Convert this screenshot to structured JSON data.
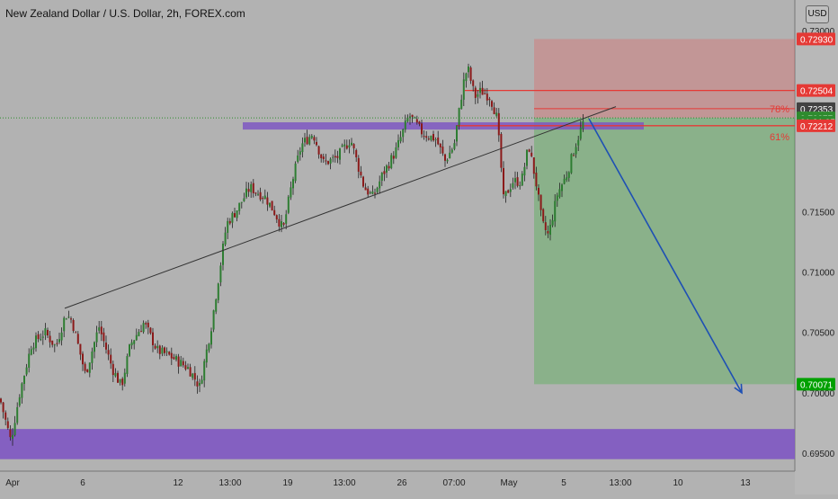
{
  "header": {
    "title": "New Zealand Dollar / U.S. Dollar, 2h, FOREX.com",
    "currency_button": "USD"
  },
  "colors": {
    "background": "#b2b2b2",
    "bull": "#2e7d32",
    "bear": "#8b1a1a",
    "zone": "#7e57c2",
    "stop": "#e53935",
    "target": "#00b000",
    "arrow": "#1e50b4",
    "trendline": "#333333"
  },
  "chart_data": {
    "type": "candlestick",
    "title": "New Zealand Dollar / U.S. Dollar, 2h, FOREX.com",
    "symbol": "NZD/USD",
    "interval": "2h",
    "x_tick_labels": [
      "Apr",
      "6",
      "12",
      "13:00",
      "19",
      "13:00",
      "26",
      "07:00",
      "May",
      "5",
      "13:00",
      "10",
      "13"
    ],
    "y_tick_labels": [
      "0.73000",
      "0.71500",
      "0.71000",
      "0.70500",
      "0.70000",
      "0.69500"
    ],
    "ylim": [
      0.6895,
      0.7305
    ],
    "price_path": [
      [
        0,
        0.6995
      ],
      [
        12,
        0.696
      ],
      [
        22,
        0.7
      ],
      [
        35,
        0.704
      ],
      [
        50,
        0.705
      ],
      [
        62,
        0.7038
      ],
      [
        73,
        0.7065
      ],
      [
        80,
        0.706
      ],
      [
        95,
        0.7015
      ],
      [
        110,
        0.7055
      ],
      [
        125,
        0.702
      ],
      [
        135,
        0.7005
      ],
      [
        145,
        0.704
      ],
      [
        160,
        0.7058
      ],
      [
        175,
        0.7035
      ],
      [
        190,
        0.703
      ],
      [
        210,
        0.702
      ],
      [
        222,
        0.7005
      ],
      [
        235,
        0.7055
      ],
      [
        245,
        0.7105
      ],
      [
        252,
        0.714
      ],
      [
        262,
        0.715
      ],
      [
        278,
        0.717
      ],
      [
        295,
        0.7162
      ],
      [
        305,
        0.715
      ],
      [
        315,
        0.7135
      ],
      [
        325,
        0.7175
      ],
      [
        335,
        0.7205
      ],
      [
        348,
        0.7215
      ],
      [
        360,
        0.719
      ],
      [
        375,
        0.7195
      ],
      [
        390,
        0.721
      ],
      [
        405,
        0.717
      ],
      [
        415,
        0.7162
      ],
      [
        425,
        0.718
      ],
      [
        440,
        0.72
      ],
      [
        455,
        0.723
      ],
      [
        470,
        0.7215
      ],
      [
        485,
        0.721
      ],
      [
        495,
        0.7192
      ],
      [
        505,
        0.7205
      ],
      [
        515,
        0.7255
      ],
      [
        520,
        0.727
      ],
      [
        528,
        0.7245
      ],
      [
        535,
        0.725
      ],
      [
        545,
        0.7245
      ],
      [
        552,
        0.723
      ],
      [
        556,
        0.72
      ],
      [
        560,
        0.716
      ],
      [
        570,
        0.7175
      ],
      [
        580,
        0.7175
      ],
      [
        588,
        0.7205
      ],
      [
        596,
        0.7175
      ],
      [
        603,
        0.714
      ],
      [
        610,
        0.713
      ],
      [
        620,
        0.7165
      ],
      [
        630,
        0.718
      ],
      [
        640,
        0.7205
      ],
      [
        650,
        0.7227
      ]
    ],
    "support_zones": [
      {
        "from": 0.7218,
        "to": 0.7224
      },
      {
        "from": 0.6945,
        "to": 0.697
      }
    ],
    "position": {
      "entry": 0.72277,
      "stop": 0.7293,
      "target": 0.70071
    },
    "fib_levels": [
      {
        "label": "78%",
        "price": 0.72353
      },
      {
        "label": "61%",
        "price": 0.72212
      }
    ],
    "resistance_line": 0.72504,
    "trendline": {
      "from": [
        72,
        0.707
      ],
      "to": [
        685,
        0.7237
      ]
    },
    "projection_arrow": {
      "from": [
        655,
        0.7227
      ],
      "to": [
        825,
        0.7
      ]
    }
  },
  "price_labels": [
    {
      "text": "0.72930",
      "price": 0.7293,
      "color": "#e53935"
    },
    {
      "text": "0.72504",
      "price": 0.72504,
      "color": "#e53935"
    },
    {
      "text": "0.72353",
      "price": 0.72353,
      "color": "#424242"
    },
    {
      "text": "0.72277",
      "price": 0.72277,
      "color": "#2e8b2e"
    },
    {
      "text": "01:31:05",
      "price": 0.72245,
      "color": "#2e8b2e"
    },
    {
      "text": "0.72212",
      "price": 0.72212,
      "color": "#e53935"
    },
    {
      "text": "0.70071",
      "price": 0.70071,
      "color": "#00a000"
    }
  ]
}
